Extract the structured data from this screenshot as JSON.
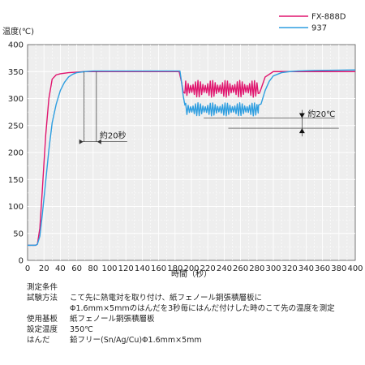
{
  "chart_data": {
    "type": "line",
    "ylabel": "温度(℃)",
    "xlabel": "時間（秒）",
    "xlim": [
      0,
      400
    ],
    "ylim": [
      0,
      400
    ],
    "grid": true,
    "legend_position": "top-right",
    "xticks": [
      "0",
      "20",
      "40",
      "60",
      "80",
      "100",
      "120",
      "140",
      "160",
      "180",
      "200",
      "220",
      "240",
      "260",
      "280",
      "300",
      "320",
      "340",
      "360",
      "380",
      "400"
    ],
    "yticks": [
      "0",
      "50",
      "100",
      "150",
      "200",
      "250",
      "300",
      "350",
      "400"
    ],
    "series": [
      {
        "name": "FX-888D",
        "color": "#e0156e",
        "x": [
          0,
          10,
          12,
          15,
          18,
          22,
          26,
          30,
          35,
          40,
          50,
          60,
          70,
          80,
          100,
          120,
          150,
          185,
          188,
          190,
          192,
          283,
          285,
          290,
          300,
          400
        ],
        "y": [
          28,
          28,
          30,
          60,
          130,
          230,
          300,
          336,
          344,
          346,
          348,
          349,
          350,
          350,
          350,
          350,
          350,
          350,
          330,
          312,
          310,
          310,
          318,
          340,
          350,
          350
        ]
      },
      {
        "name": "937",
        "color": "#2e9ee0",
        "x": [
          0,
          10,
          12,
          15,
          18,
          22,
          26,
          30,
          35,
          40,
          45,
          50,
          55,
          60,
          70,
          80,
          100,
          150,
          186,
          188,
          190,
          192,
          282,
          285,
          288,
          290,
          295,
          300,
          310,
          320,
          330,
          350,
          400
        ],
        "y": [
          28,
          28,
          30,
          45,
          85,
          145,
          205,
          255,
          290,
          315,
          330,
          340,
          345,
          348,
          350,
          351,
          351,
          351,
          351,
          330,
          305,
          288,
          288,
          290,
          305,
          315,
          332,
          342,
          348,
          350,
          351,
          352,
          353
        ]
      }
    ],
    "annotations": [
      {
        "text": "約20秒",
        "x_from": 69,
        "x_to": 84,
        "y": 220
      },
      {
        "text": "約20℃",
        "y_from": 245,
        "y_to": 264,
        "x": 335
      }
    ]
  },
  "conditions": {
    "title": "測定条件",
    "rows": [
      {
        "key": "試験方法",
        "value": "こて先に熱電対を取り付け、紙フェノール銅張積層板に"
      },
      {
        "key": "",
        "value": "Φ1.6mm×5mmのはんだを3秒毎にはんだ付けした時のこて先の温度を測定"
      },
      {
        "key": "使用基板",
        "value": "紙フェノール銅張積層板"
      },
      {
        "key": "設定温度",
        "value": "350℃"
      },
      {
        "key": "はんだ",
        "value": "鉛フリー(Sn/Ag/Cu)Φ1.6mm×5mm"
      }
    ]
  }
}
